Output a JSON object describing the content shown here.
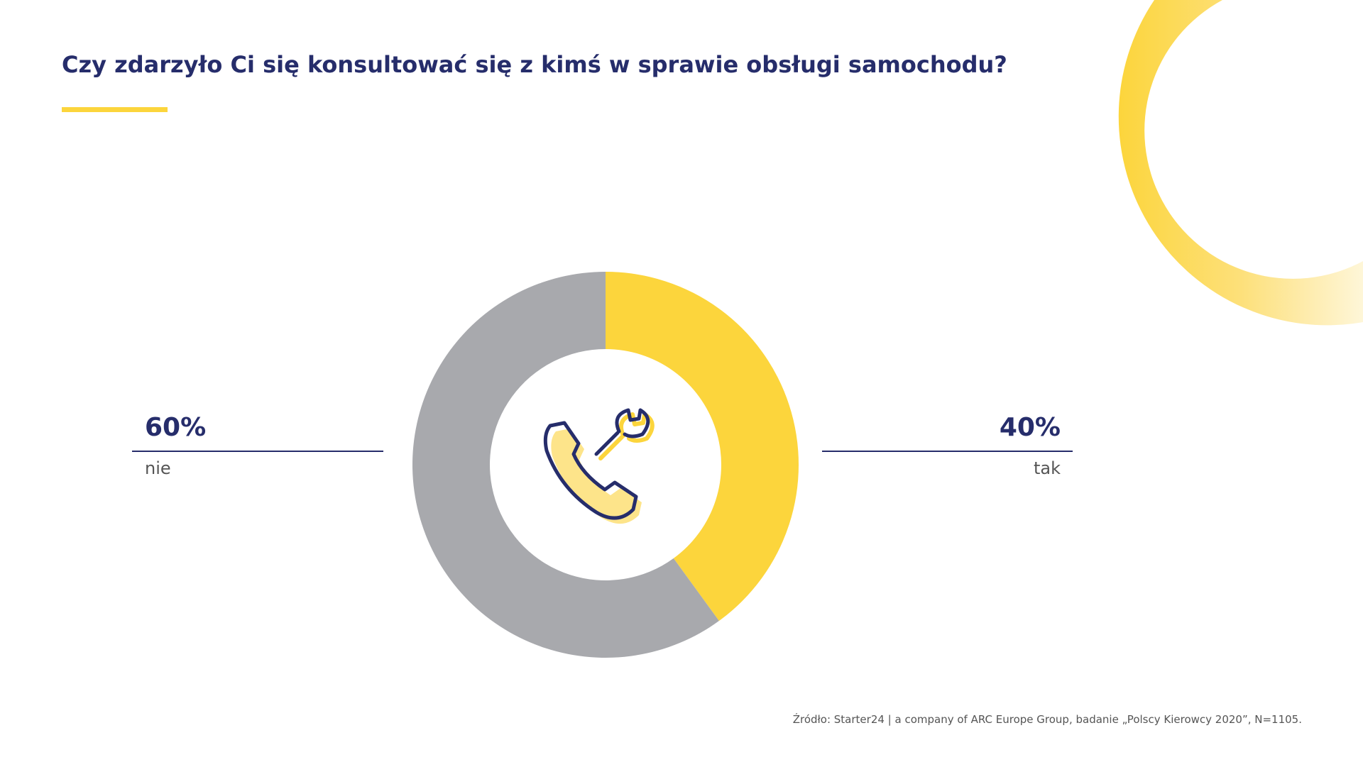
{
  "chart_data": {
    "type": "pie",
    "title": "Czy zdarzyło Ci się konsultować się z kimś w sprawie obsługi samochodu?",
    "categories": [
      "tak",
      "nie"
    ],
    "values": [
      40,
      60
    ],
    "value_labels": [
      "40%",
      "60%"
    ],
    "colors": [
      "#fcd53c",
      "#a8a9ad"
    ],
    "source": "Źródło: Starter24 | a company of ARC Europe Group, badanie „Polscy Kierowcy 2020”, N=1105."
  }
}
